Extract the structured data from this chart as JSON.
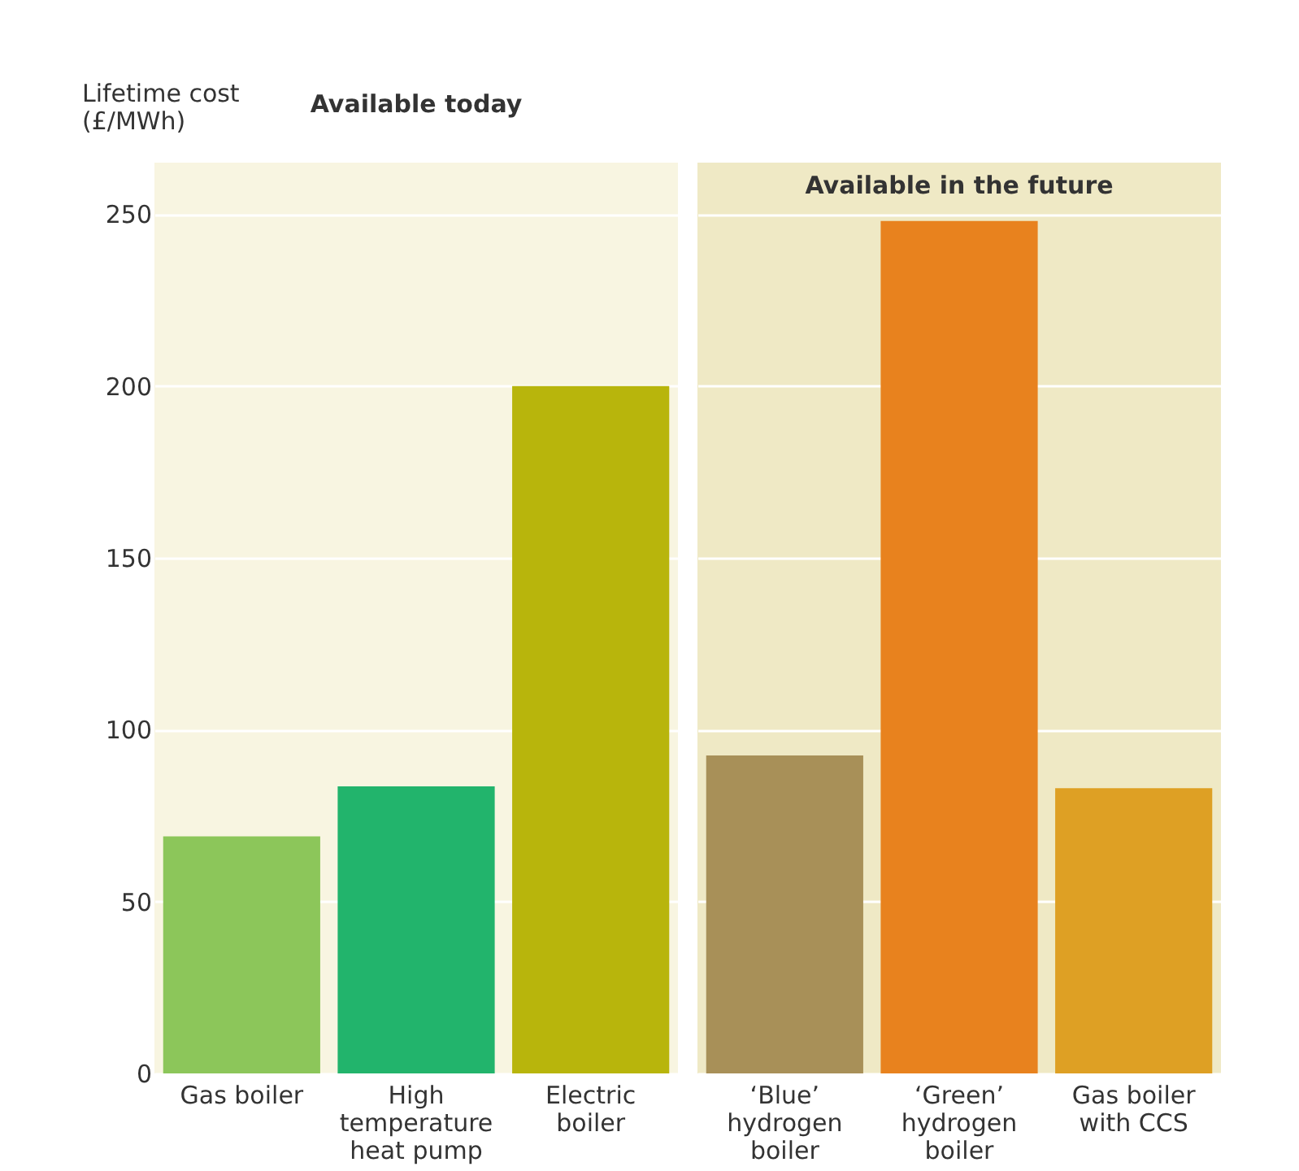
{
  "chart_data": [
    {
      "type": "bar",
      "title": "Available today",
      "ylabel": "Lifetime cost (£/MWh)",
      "categories": [
        "Gas boiler",
        "High temperature heat pump",
        "Electric boiler"
      ],
      "values": [
        69,
        83.5,
        200
      ],
      "colors": [
        "#8cc65a",
        "#22b46c",
        "#b8b50c"
      ],
      "ylim": [
        0,
        265
      ],
      "yticks": [
        0,
        50,
        100,
        150,
        200,
        250
      ],
      "grid": "y"
    },
    {
      "type": "bar",
      "title": "Available in the future",
      "categories": [
        "‘Blue’ hydrogen boiler",
        "‘Green’ hydrogen boiler",
        "Gas boiler with CCS"
      ],
      "values": [
        92.5,
        248,
        83
      ],
      "colors": [
        "#a89058",
        "#e8821e",
        "#dea024"
      ],
      "ylim": [
        0,
        265
      ],
      "yticks": [
        0,
        50,
        100,
        150,
        200,
        250
      ],
      "grid": "y",
      "tick_labels": "x"
    }
  ]
}
